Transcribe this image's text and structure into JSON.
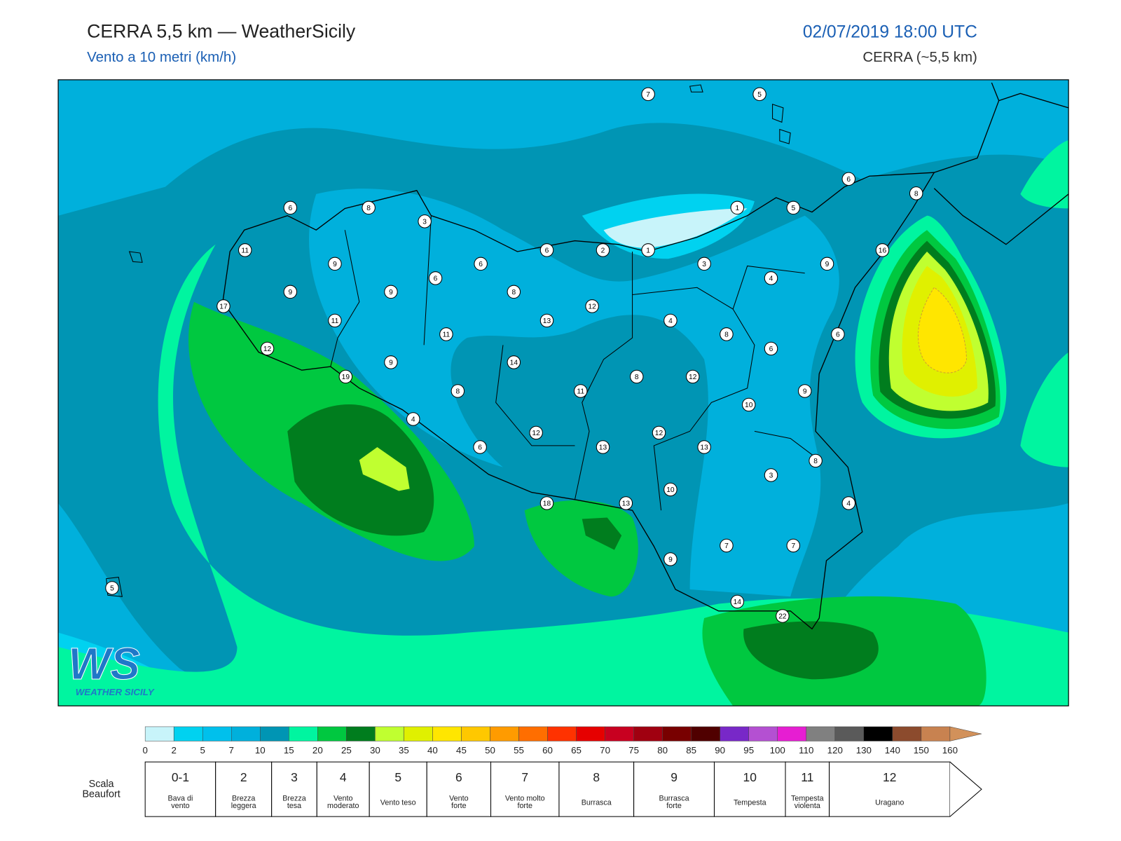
{
  "header": {
    "title": "CERRA 5,5 km — WeatherSicily",
    "subtitle": "Vento a 10 metri (km/h)",
    "datetime": "02/07/2019 18:00 UTC",
    "model": "CERRA (~5,5 km)"
  },
  "stations": [
    7,
    5,
    6,
    8,
    3,
    6,
    8,
    1,
    5,
    11,
    6,
    2,
    1,
    16,
    9,
    6,
    3,
    9,
    6,
    4,
    9,
    9,
    8,
    17,
    12,
    11,
    13,
    4,
    11,
    8,
    6,
    12,
    6,
    14,
    9,
    19,
    8,
    12,
    11,
    8,
    9,
    10,
    4,
    12,
    12,
    6,
    13,
    13,
    8,
    3,
    10,
    18,
    13,
    4,
    7,
    7,
    9,
    14,
    22,
    5
  ],
  "colorbar": {
    "ticks": [
      0,
      2,
      5,
      7,
      10,
      15,
      20,
      25,
      30,
      35,
      40,
      45,
      50,
      55,
      60,
      65,
      70,
      75,
      80,
      85,
      90,
      95,
      100,
      110,
      120,
      130,
      140,
      150,
      160
    ],
    "colors": [
      "#c8f4fa",
      "#00d2f0",
      "#00c0ec",
      "#00b0dc",
      "#0095b4",
      "#00f5a0",
      "#00c840",
      "#007d1e",
      "#c0ff30",
      "#e0f000",
      "#ffe600",
      "#ffc800",
      "#ff9b00",
      "#ff6e00",
      "#ff3200",
      "#e60000",
      "#c80020",
      "#a00010",
      "#780000",
      "#500000",
      "#7828c8",
      "#b450d2",
      "#e61ed2",
      "#808080",
      "#5a5a5a",
      "#000000",
      "#8c4b2d",
      "#c88250",
      "#d2915a"
    ]
  },
  "beaufort": {
    "label": [
      "Scala",
      "Beaufort"
    ],
    "levels": [
      {
        "force": "0-1",
        "description": [
          "Bava di",
          "vento"
        ]
      },
      {
        "force": "2",
        "description": [
          "Brezza",
          "leggera"
        ]
      },
      {
        "force": "3",
        "description": [
          "Brezza",
          "tesa"
        ]
      },
      {
        "force": "4",
        "description": [
          "Vento",
          "moderato"
        ]
      },
      {
        "force": "5",
        "description": [
          "Vento teso"
        ]
      },
      {
        "force": "6",
        "description": [
          "Vento",
          "forte"
        ]
      },
      {
        "force": "7",
        "description": [
          "Vento molto",
          "forte"
        ]
      },
      {
        "force": "8",
        "description": [
          "Burrasca"
        ]
      },
      {
        "force": "9",
        "description": [
          "Burrasca",
          "forte"
        ]
      },
      {
        "force": "10",
        "description": [
          "Tempesta"
        ]
      },
      {
        "force": "11",
        "description": [
          "Tempesta",
          "violenta"
        ]
      },
      {
        "force": "12",
        "description": [
          "Uragano"
        ]
      }
    ]
  },
  "logo": {
    "mark": "WS",
    "text": "WEATHER SICILY"
  }
}
